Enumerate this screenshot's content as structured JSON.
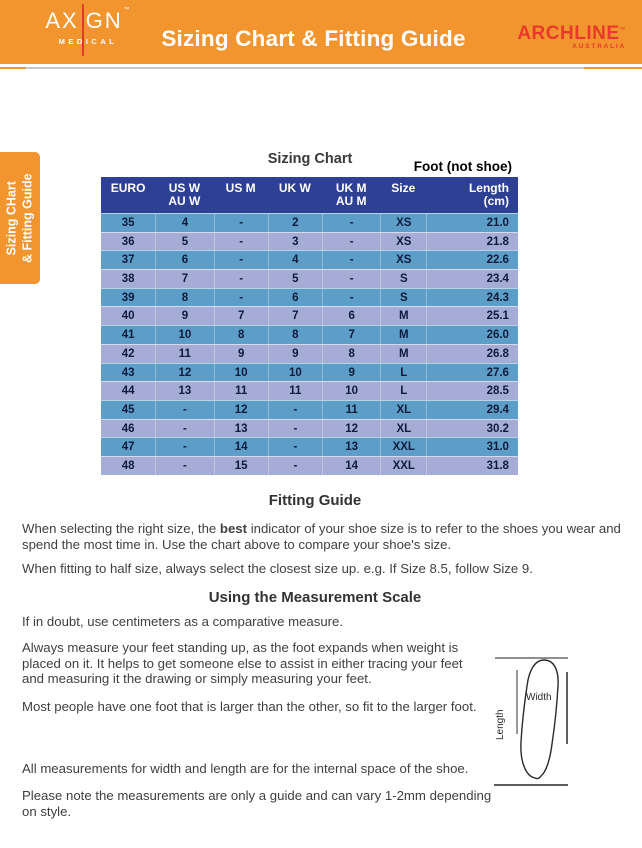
{
  "header": {
    "logo": {
      "part1": "AX",
      "part2": "GN",
      "tm": "™",
      "sub": "MEDICAL"
    },
    "title": "Sizing Chart & Fitting Guide",
    "brand": {
      "name": "ARCHLINE",
      "tm": "™",
      "sub": "AUSTRALIA"
    }
  },
  "side_tab": {
    "line1": "Sizing CHart",
    "line2": "& Fitting Guide"
  },
  "sizing_chart": {
    "title": "Sizing Chart",
    "foot_note": "Foot (not shoe)",
    "columns": [
      {
        "top": "EURO",
        "bottom": ""
      },
      {
        "top": "US W",
        "bottom": "AU W"
      },
      {
        "top": "US M",
        "bottom": ""
      },
      {
        "top": "UK W",
        "bottom": ""
      },
      {
        "top": "UK M",
        "bottom": "AU M"
      },
      {
        "top": "Size",
        "bottom": ""
      },
      {
        "top": "Length",
        "bottom": "(cm)"
      }
    ],
    "rows": [
      [
        "35",
        "4",
        "-",
        "2",
        "-",
        "XS",
        "21.0"
      ],
      [
        "36",
        "5",
        "-",
        "3",
        "-",
        "XS",
        "21.8"
      ],
      [
        "37",
        "6",
        "-",
        "4",
        "-",
        "XS",
        "22.6"
      ],
      [
        "38",
        "7",
        "-",
        "5",
        "-",
        "S",
        "23.4"
      ],
      [
        "39",
        "8",
        "-",
        "6",
        "-",
        "S",
        "24.3"
      ],
      [
        "40",
        "9",
        "7",
        "7",
        "6",
        "M",
        "25.1"
      ],
      [
        "41",
        "10",
        "8",
        "8",
        "7",
        "M",
        "26.0"
      ],
      [
        "42",
        "11",
        "9",
        "9",
        "8",
        "M",
        "26.8"
      ],
      [
        "43",
        "12",
        "10",
        "10",
        "9",
        "L",
        "27.6"
      ],
      [
        "44",
        "13",
        "11",
        "11",
        "10",
        "L",
        "28.5"
      ],
      [
        "45",
        "-",
        "12",
        "-",
        "11",
        "XL",
        "29.4"
      ],
      [
        "46",
        "-",
        "13",
        "-",
        "12",
        "XL",
        "30.2"
      ],
      [
        "47",
        "-",
        "14",
        "-",
        "13",
        "XXL",
        "31.0"
      ],
      [
        "48",
        "-",
        "15",
        "-",
        "14",
        "XXL",
        "31.8"
      ]
    ]
  },
  "fitting_guide": {
    "heading": "Fitting Guide",
    "p1_pre": "When selecting the right size, the ",
    "p1_bold": "best",
    "p1_post": " indicator of your shoe size is to refer to the shoes you wear and spend the most time in. Use the chart above to compare your shoe's size.",
    "p2": "When fitting to half size, always select the closest size up. e.g. If Size 8.5, follow Size 9."
  },
  "measurement": {
    "heading": "Using the Measurement Scale",
    "p1": "If in doubt, use centimeters as a comparative measure.",
    "p2": "Always measure your feet standing up, as the foot expands when weight is placed on it. It helps to get someone else to assist in either tracing your feet and measuring it the drawing or simply measuring your feet.",
    "p3": "Most people have one foot that is larger than the other, so fit to the larger foot.",
    "p4": "All measurements for width and length are for the internal space of the shoe.",
    "p5": "Please note the measurements are only a guide and can vary 1-2mm depending on style."
  },
  "diagram": {
    "width_label": "Width",
    "length_label": "Length"
  },
  "colors": {
    "orange": "#F2952E",
    "brand_red": "#E8392B",
    "header_blue": "#2E4094",
    "row_blue": "#5C9EC7",
    "row_periwinkle": "#A5ADD6"
  }
}
